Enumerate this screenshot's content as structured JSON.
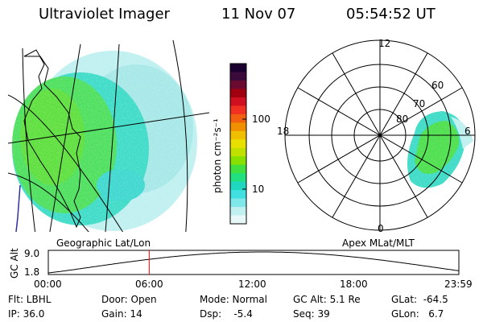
{
  "header": {
    "title": "Ultraviolet Imager",
    "date": "11 Nov 07",
    "time": "05:54:52 UT"
  },
  "colorbar": {
    "unit_label": "photon cm⁻²s⁻¹",
    "ticks": [
      "100",
      "10"
    ],
    "colors": [
      "#1a0030",
      "#3a0a3a",
      "#6a0a30",
      "#a00010",
      "#d01020",
      "#f03020",
      "#f06010",
      "#f09000",
      "#f0c000",
      "#e8e000",
      "#c0e000",
      "#88e000",
      "#40e040",
      "#20e080",
      "#20d8c0",
      "#40e0e0",
      "#80e8e8",
      "#c0f0f0",
      "#e8f8f8"
    ]
  },
  "geo_panel": {
    "caption": "Geographic Lat/Lon"
  },
  "polar_panel": {
    "caption": "Apex MLat/MLT",
    "mlt_labels": [
      "12",
      "18",
      "6",
      "0"
    ],
    "mlat_labels": [
      "60",
      "70",
      "80"
    ]
  },
  "orbit_plot": {
    "ylabel": "GC Alt",
    "ytick_top": "9.0",
    "ytick_bottom": "1.8",
    "xticks": [
      "00:00",
      "06:00",
      "12:00",
      "18:00",
      "23:59"
    ],
    "marker_time_hours": 5.9,
    "marker_color": "#ff0000"
  },
  "status": {
    "flt": "Flt: LBHL",
    "ip": "IP: 36.0",
    "door": "Door: Open",
    "gain": "Gain: 14",
    "mode": "Mode: Normal",
    "dsp": "Dsp:    -5.4",
    "gcalt": "GC Alt: 5.1 Re",
    "seq": "Seq: 39",
    "glat": "GLat:  -64.5",
    "glon": "GLon:   6.7"
  }
}
